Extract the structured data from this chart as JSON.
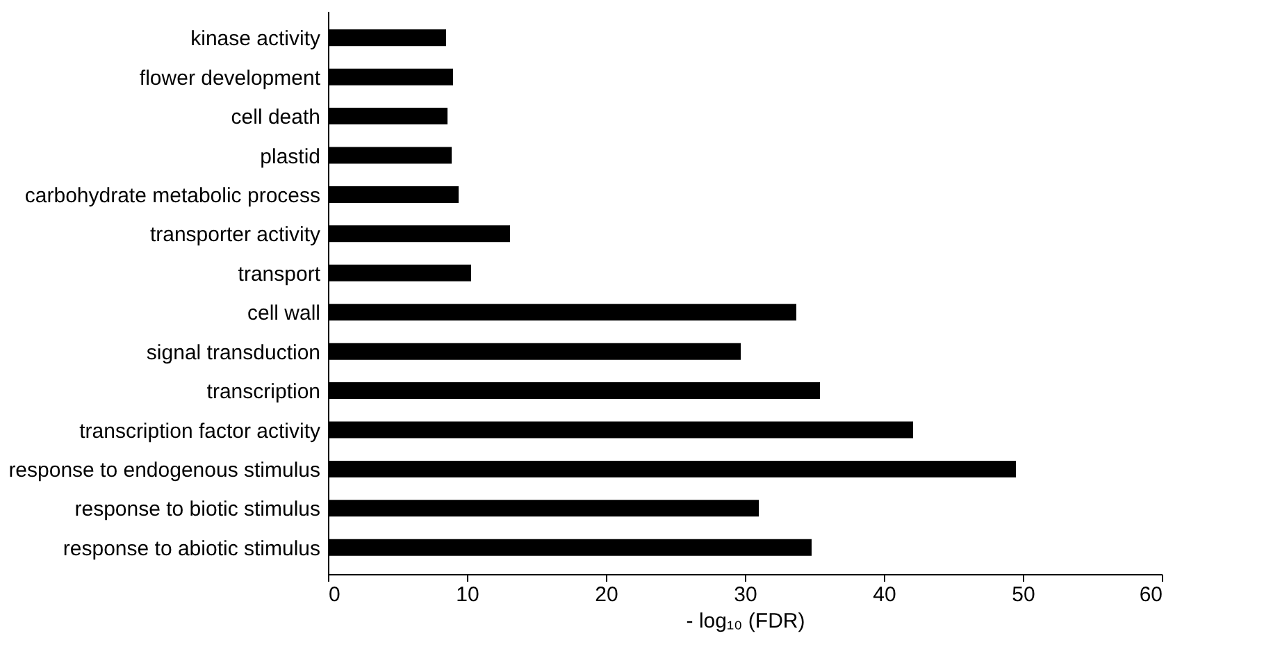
{
  "chart_data": {
    "type": "bar",
    "orientation": "horizontal",
    "xlabel": "- log₁₀ (FDR)",
    "categories": [
      "kinase activity",
      "flower development",
      "cell death",
      "plastid",
      "carbohydrate metabolic process",
      "transporter activity",
      "transport",
      "cell wall",
      "signal transduction",
      "transcription",
      "transcription factor activity",
      "response to endogenous stimulus",
      "response to biotic stimulus",
      "response to abiotic stimulus"
    ],
    "values": [
      8.5,
      9.0,
      8.6,
      8.9,
      9.4,
      13.1,
      10.3,
      33.7,
      29.7,
      35.4,
      42.1,
      49.5,
      31.0,
      34.8
    ],
    "color": "#000000",
    "xlim": [
      0,
      60
    ],
    "xticks": [
      0,
      10,
      20,
      30,
      40,
      50,
      60
    ],
    "grid": false
  }
}
